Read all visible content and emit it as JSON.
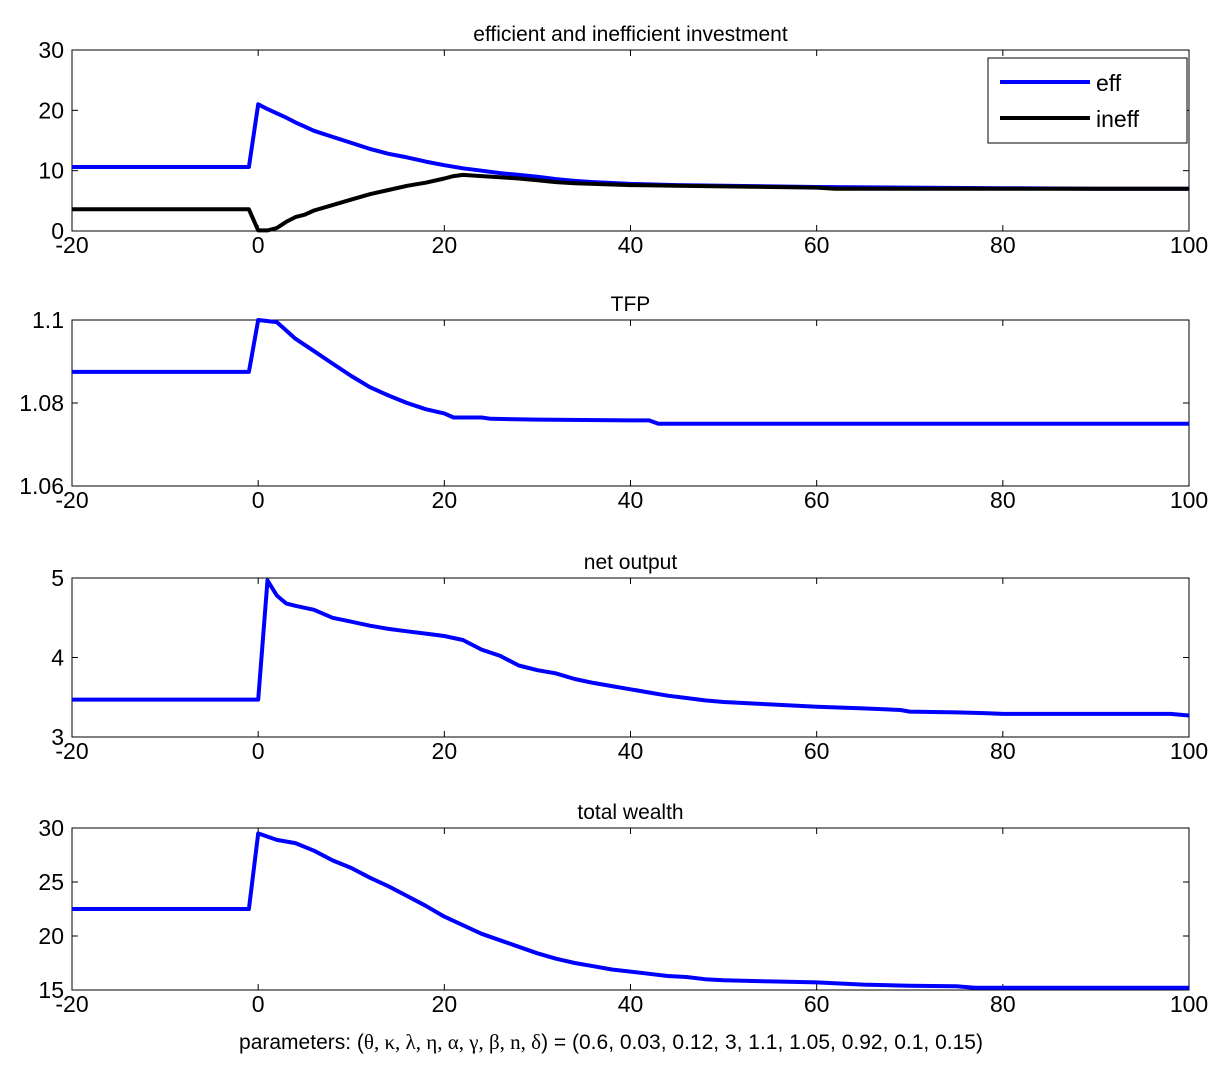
{
  "chart_data": [
    {
      "type": "line",
      "title": "efficient and inefficient investment",
      "xlim": [
        -20,
        100
      ],
      "ylim": [
        0,
        30
      ],
      "xticks": [
        "-20",
        "0",
        "20",
        "40",
        "60",
        "80",
        "100"
      ],
      "yticks": [
        "0",
        "10",
        "20",
        "30"
      ],
      "grid": false,
      "legend": "top-right",
      "series": [
        {
          "name": "eff",
          "color": "#0000ff",
          "points": [
            [
              -20,
              10.6
            ],
            [
              -1,
              10.6
            ],
            [
              0,
              21
            ],
            [
              1,
              20.2
            ],
            [
              2,
              19.5
            ],
            [
              3,
              18.8
            ],
            [
              4,
              18.0
            ],
            [
              5,
              17.3
            ],
            [
              6,
              16.6
            ],
            [
              8,
              15.6
            ],
            [
              10,
              14.6
            ],
            [
              12,
              13.6
            ],
            [
              14,
              12.8
            ],
            [
              16,
              12.2
            ],
            [
              18,
              11.5
            ],
            [
              20,
              10.9
            ],
            [
              22,
              10.4
            ],
            [
              24,
              10.0
            ],
            [
              26,
              9.6
            ],
            [
              28,
              9.3
            ],
            [
              30,
              9.0
            ],
            [
              32,
              8.6
            ],
            [
              34,
              8.3
            ],
            [
              36,
              8.1
            ],
            [
              40,
              7.8
            ],
            [
              45,
              7.6
            ],
            [
              50,
              7.5
            ],
            [
              55,
              7.4
            ],
            [
              60,
              7.3
            ],
            [
              70,
              7.2
            ],
            [
              80,
              7.1
            ],
            [
              90,
              7.0
            ],
            [
              100,
              7.0
            ]
          ]
        },
        {
          "name": "ineff",
          "color": "#000000",
          "points": [
            [
              -20,
              3.6
            ],
            [
              -1,
              3.6
            ],
            [
              0,
              0.1
            ],
            [
              1,
              0.1
            ],
            [
              2,
              0.5
            ],
            [
              3,
              1.5
            ],
            [
              4,
              2.3
            ],
            [
              5,
              2.7
            ],
            [
              6,
              3.4
            ],
            [
              8,
              4.3
            ],
            [
              10,
              5.2
            ],
            [
              12,
              6.1
            ],
            [
              14,
              6.8
            ],
            [
              16,
              7.5
            ],
            [
              18,
              8.0
            ],
            [
              20,
              8.7
            ],
            [
              21,
              9.1
            ],
            [
              22,
              9.3
            ],
            [
              24,
              9.1
            ],
            [
              26,
              8.9
            ],
            [
              28,
              8.7
            ],
            [
              30,
              8.4
            ],
            [
              32,
              8.1
            ],
            [
              34,
              7.9
            ],
            [
              36,
              7.8
            ],
            [
              40,
              7.6
            ],
            [
              45,
              7.5
            ],
            [
              50,
              7.4
            ],
            [
              60,
              7.2
            ],
            [
              62,
              7.0
            ],
            [
              80,
              7.0
            ],
            [
              100,
              7.0
            ]
          ]
        }
      ]
    },
    {
      "type": "line",
      "title": "TFP",
      "xlim": [
        -20,
        100
      ],
      "ylim": [
        1.06,
        1.1
      ],
      "xticks": [
        "-20",
        "0",
        "20",
        "40",
        "60",
        "80",
        "100"
      ],
      "yticks": [
        "1.06",
        "1.08",
        "1.1"
      ],
      "grid": false,
      "series": [
        {
          "color": "#0000ff",
          "points": [
            [
              -20,
              1.0875
            ],
            [
              -1,
              1.0875
            ],
            [
              0,
              1.1
            ],
            [
              2,
              1.0995
            ],
            [
              3,
              1.0975
            ],
            [
              4,
              1.0955
            ],
            [
              6,
              1.0925
            ],
            [
              8,
              1.0895
            ],
            [
              10,
              1.0865
            ],
            [
              12,
              1.0838
            ],
            [
              14,
              1.0818
            ],
            [
              16,
              1.08
            ],
            [
              18,
              1.0785
            ],
            [
              20,
              1.0775
            ],
            [
              21,
              1.0765
            ],
            [
              24,
              1.0765
            ],
            [
              25,
              1.0762
            ],
            [
              30,
              1.076
            ],
            [
              40,
              1.0758
            ],
            [
              42,
              1.0758
            ],
            [
              43,
              1.075
            ],
            [
              60,
              1.075
            ],
            [
              80,
              1.075
            ],
            [
              100,
              1.075
            ]
          ]
        }
      ]
    },
    {
      "type": "line",
      "title": "net output",
      "xlim": [
        -20,
        100
      ],
      "ylim": [
        3,
        5
      ],
      "xticks": [
        "-20",
        "0",
        "20",
        "40",
        "60",
        "80",
        "100"
      ],
      "yticks": [
        "3",
        "4",
        "5"
      ],
      "grid": false,
      "series": [
        {
          "color": "#0000ff",
          "points": [
            [
              -20,
              3.47
            ],
            [
              0,
              3.47
            ],
            [
              1,
              4.97
            ],
            [
              2,
              4.78
            ],
            [
              3,
              4.68
            ],
            [
              4,
              4.65
            ],
            [
              6,
              4.6
            ],
            [
              8,
              4.5
            ],
            [
              10,
              4.45
            ],
            [
              12,
              4.4
            ],
            [
              14,
              4.36
            ],
            [
              16,
              4.33
            ],
            [
              18,
              4.3
            ],
            [
              20,
              4.27
            ],
            [
              22,
              4.22
            ],
            [
              24,
              4.1
            ],
            [
              26,
              4.02
            ],
            [
              28,
              3.9
            ],
            [
              30,
              3.84
            ],
            [
              32,
              3.8
            ],
            [
              34,
              3.73
            ],
            [
              36,
              3.68
            ],
            [
              38,
              3.64
            ],
            [
              40,
              3.6
            ],
            [
              42,
              3.56
            ],
            [
              44,
              3.52
            ],
            [
              46,
              3.49
            ],
            [
              48,
              3.46
            ],
            [
              50,
              3.44
            ],
            [
              55,
              3.41
            ],
            [
              60,
              3.38
            ],
            [
              65,
              3.36
            ],
            [
              69,
              3.34
            ],
            [
              70,
              3.32
            ],
            [
              75,
              3.31
            ],
            [
              78,
              3.3
            ],
            [
              80,
              3.29
            ],
            [
              90,
              3.29
            ],
            [
              98,
              3.29
            ],
            [
              100,
              3.27
            ]
          ]
        }
      ]
    },
    {
      "type": "line",
      "title": "total wealth",
      "xlim": [
        -20,
        100
      ],
      "ylim": [
        15,
        30
      ],
      "xticks": [
        "-20",
        "0",
        "20",
        "40",
        "60",
        "80",
        "100"
      ],
      "yticks": [
        "15",
        "20",
        "25",
        "30"
      ],
      "grid": false,
      "series": [
        {
          "color": "#0000ff",
          "points": [
            [
              -20,
              22.5
            ],
            [
              -1,
              22.5
            ],
            [
              0,
              29.5
            ],
            [
              1,
              29.2
            ],
            [
              2,
              28.9
            ],
            [
              4,
              28.6
            ],
            [
              6,
              27.9
            ],
            [
              8,
              27.0
            ],
            [
              10,
              26.3
            ],
            [
              12,
              25.4
            ],
            [
              14,
              24.6
            ],
            [
              16,
              23.7
            ],
            [
              18,
              22.8
            ],
            [
              20,
              21.8
            ],
            [
              22,
              21.0
            ],
            [
              24,
              20.2
            ],
            [
              26,
              19.6
            ],
            [
              28,
              19.0
            ],
            [
              30,
              18.4
            ],
            [
              32,
              17.9
            ],
            [
              34,
              17.5
            ],
            [
              36,
              17.2
            ],
            [
              38,
              16.9
            ],
            [
              40,
              16.7
            ],
            [
              42,
              16.5
            ],
            [
              44,
              16.3
            ],
            [
              46,
              16.2
            ],
            [
              48,
              16.0
            ],
            [
              50,
              15.9
            ],
            [
              55,
              15.8
            ],
            [
              60,
              15.7
            ],
            [
              65,
              15.5
            ],
            [
              70,
              15.4
            ],
            [
              75,
              15.35
            ],
            [
              77,
              15.2
            ],
            [
              80,
              15.2
            ],
            [
              100,
              15.2
            ]
          ]
        }
      ]
    }
  ],
  "footer": {
    "prefix": "parameters: (",
    "symbols": "θ,  κ, λ, η, α, γ, β, n, δ",
    "suffix": ") = (0.6, 0.03, 0.12, 3, 1.1, 1.05, 0.92, 0.1, 0.15)"
  }
}
